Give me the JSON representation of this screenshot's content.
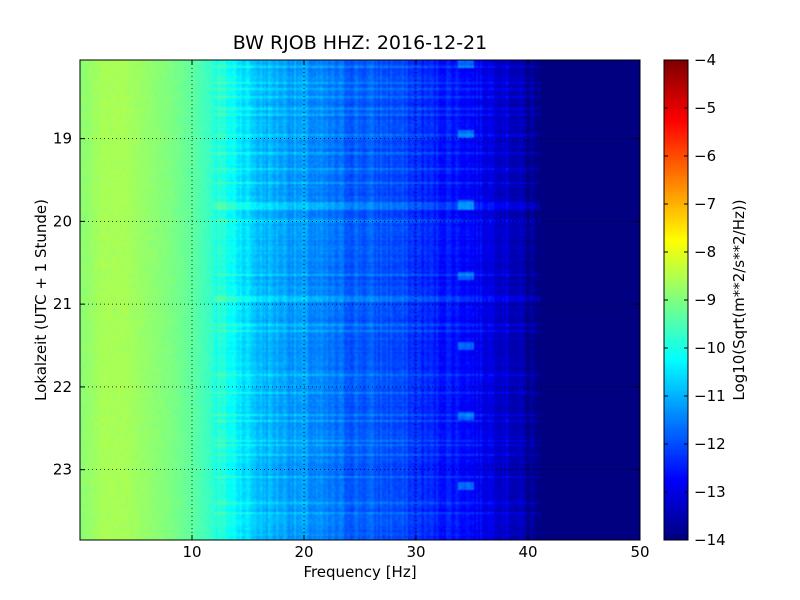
{
  "chart_data": {
    "type": "heatmap",
    "title": "BW RJOB HHZ: 2016-12-21",
    "xlabel": "Frequency [Hz]",
    "ylabel": "Lokalzeit (UTC + 1 Stunde)",
    "xlim": [
      0,
      50
    ],
    "ylim": [
      18.05,
      23.85
    ],
    "x_ticks": [
      10,
      20,
      30,
      40,
      50
    ],
    "y_ticks": [
      19,
      20,
      21,
      22,
      23
    ],
    "y_inverted": true,
    "grid": true,
    "colormap": "jet",
    "colorbar": {
      "label": "Log10(Sqrt(m**2/s**2/Hz))",
      "range": [
        -14,
        -4
      ],
      "ticks": [
        -4,
        -5,
        -6,
        -7,
        -8,
        -9,
        -10,
        -11,
        -12,
        -13,
        -14
      ]
    },
    "spectral_profile": {
      "frequency_hz": [
        0,
        2,
        4,
        6,
        8,
        10,
        12,
        14,
        16,
        18,
        20,
        22,
        24,
        26,
        28,
        30,
        32,
        34,
        36,
        38,
        40,
        41,
        50
      ],
      "log10_amplitude": [
        -8.9,
        -8.6,
        -8.6,
        -8.8,
        -9.0,
        -9.3,
        -9.8,
        -10.3,
        -10.9,
        -11.1,
        -11.3,
        -11.6,
        -11.8,
        -11.9,
        -12.0,
        -12.3,
        -12.5,
        -12.6,
        -12.9,
        -13.2,
        -13.7,
        -14.0,
        -14.0
      ]
    },
    "tonal_feature_hz": 34.5
  }
}
